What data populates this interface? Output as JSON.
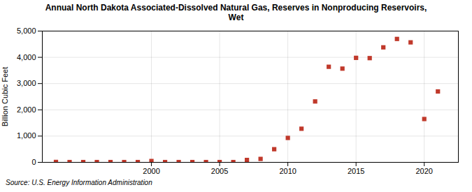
{
  "chart_data": {
    "type": "scatter",
    "title": "Annual North Dakota Associated-Dissolved Natural Gas, Reserves in Nonproducing Reservoirs,\nWet",
    "ylabel": "Billion Cubic Feet",
    "annotations": [
      "Source: U.S. Energy Information Administration"
    ],
    "x": [
      1993,
      1994,
      1995,
      1996,
      1997,
      1998,
      1999,
      2000,
      2001,
      2002,
      2003,
      2004,
      2005,
      2006,
      2007,
      2008,
      2009,
      2010,
      2011,
      2012,
      2013,
      2014,
      2015,
      2016,
      2017,
      2018,
      2019,
      2020,
      2021
    ],
    "values": [
      15,
      10,
      10,
      10,
      10,
      10,
      10,
      50,
      10,
      10,
      10,
      10,
      10,
      10,
      90,
      130,
      500,
      930,
      1280,
      2320,
      3640,
      3570,
      3980,
      3970,
      4380,
      4700,
      4570,
      1650,
      2700
    ],
    "color": "#c0392b",
    "marker": "square",
    "xlim": [
      1992,
      2022.5
    ],
    "xticks": [
      2000,
      2005,
      2010,
      2015,
      2020
    ],
    "ylim": [
      0,
      5000
    ],
    "yticks": [
      0,
      {
        "value": 1000,
        "label": "1,000"
      },
      {
        "value": 2000,
        "label": "2,000"
      },
      {
        "value": 3000,
        "label": "3,000"
      },
      {
        "value": 4000,
        "label": "4,000"
      },
      {
        "value": 5000,
        "label": "5,000"
      }
    ],
    "grid": true
  }
}
